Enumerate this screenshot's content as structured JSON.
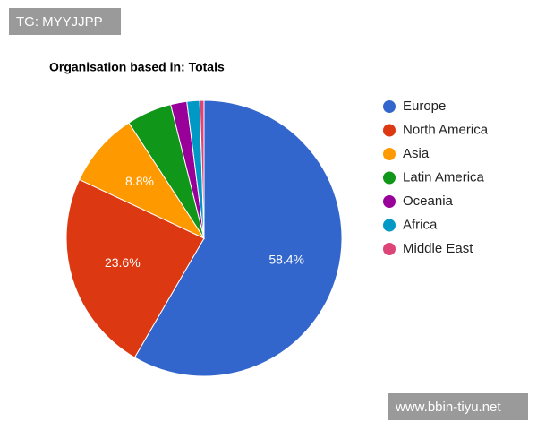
{
  "chart_data": {
    "type": "pie",
    "title": "Organisation based in: Totals",
    "categories": [
      "Europe",
      "North America",
      "Asia",
      "Latin America",
      "Oceania",
      "Africa",
      "Middle East"
    ],
    "values": [
      58.4,
      23.6,
      8.8,
      5.3,
      1.9,
      1.5,
      0.5
    ],
    "value_labels": [
      "58.4%",
      "23.6%",
      "8.8%",
      null,
      null,
      null,
      null
    ],
    "colors": [
      "#3366cc",
      "#dc3912",
      "#ff9900",
      "#109618",
      "#990099",
      "#0099c6",
      "#dd4477"
    ],
    "legend": "right"
  },
  "watermarks": [
    "TG: MYYJJPP",
    "www.bbin-tiyu.net"
  ]
}
